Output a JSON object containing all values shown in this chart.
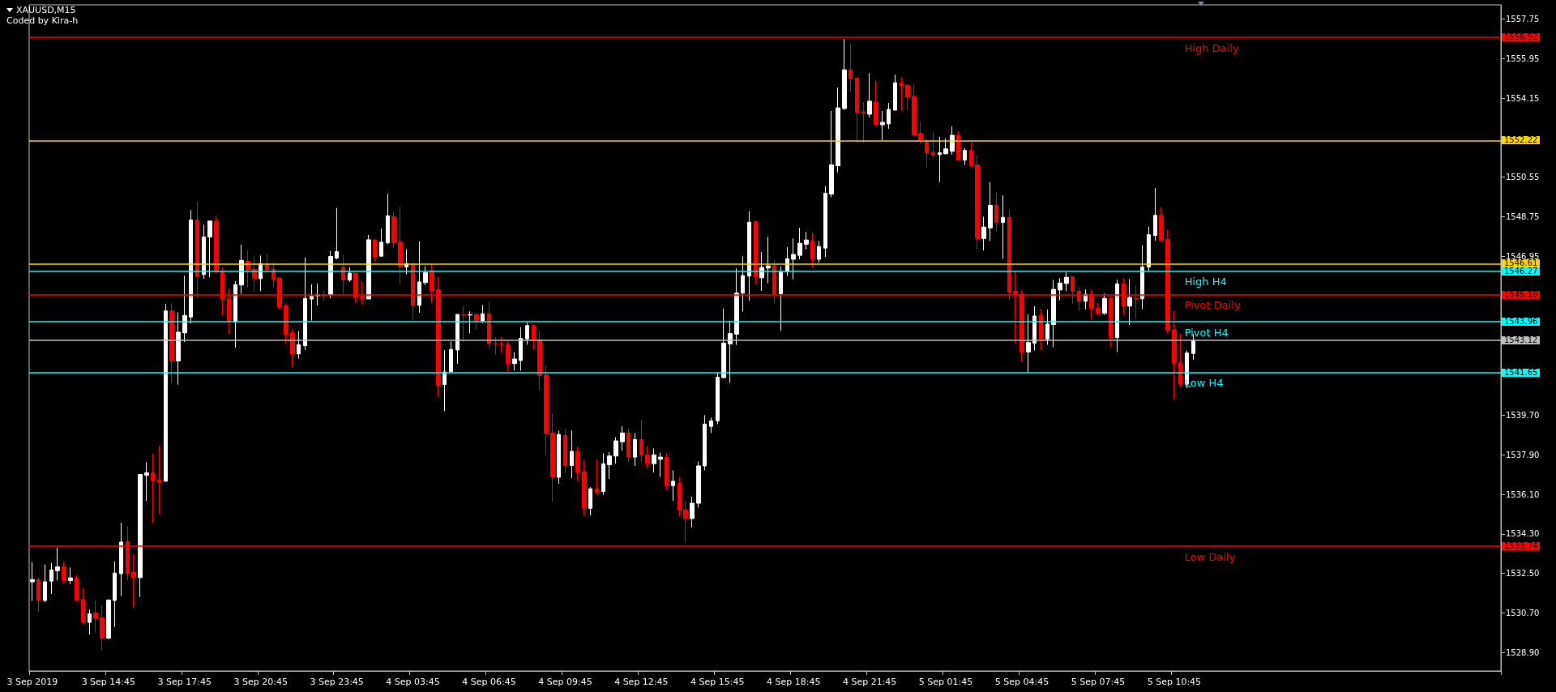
{
  "chart_data": {
    "type": "candlestick",
    "title": "XAUUSD,M15",
    "annotations": [
      "Coded by Kira-h",
      "1556.92",
      "1552.22",
      "1546.61",
      "1546.27",
      "1545.19",
      "1543.96",
      "1543.12",
      "1541.65",
      "1533.74"
    ],
    "categories": [
      "3 Sep 2019",
      null,
      null,
      null,
      null,
      null,
      null,
      null,
      null,
      null,
      null,
      null,
      "3 Sep 14:45",
      null,
      null,
      null,
      null,
      null,
      null,
      null,
      null,
      null,
      null,
      null,
      "3 Sep 17:45",
      null,
      null,
      null,
      null,
      null,
      null,
      null,
      null,
      null,
      null,
      null,
      "3 Sep 20:45",
      null,
      null,
      null,
      null,
      null,
      null,
      null,
      null,
      null,
      null,
      null,
      "3 Sep 23:45",
      null,
      null,
      null,
      null,
      null,
      null,
      null,
      null,
      null,
      null,
      null,
      "4 Sep 03:45",
      null,
      null,
      null,
      null,
      null,
      null,
      null,
      null,
      null,
      null,
      null,
      "4 Sep 06:45",
      null,
      null,
      null,
      null,
      null,
      null,
      null,
      null,
      null,
      null,
      null,
      "4 Sep 09:45",
      null,
      null,
      null,
      null,
      null,
      null,
      null,
      null,
      null,
      null,
      null,
      "4 Sep 12:45",
      null,
      null,
      null,
      null,
      null,
      null,
      null,
      null,
      null,
      null,
      null,
      "4 Sep 15:45",
      null,
      null,
      null,
      null,
      null,
      null,
      null,
      null,
      null,
      null,
      null,
      "4 Sep 18:45",
      null,
      null,
      null,
      null,
      null,
      null,
      null,
      null,
      null,
      null,
      null,
      "4 Sep 21:45",
      null,
      null,
      null,
      null,
      null,
      null,
      null,
      null,
      null,
      null,
      null,
      "5 Sep 01:45",
      null,
      null,
      null,
      null,
      null,
      null,
      null,
      null,
      null,
      null,
      null,
      "5 Sep 04:45",
      null,
      null,
      null,
      null,
      null,
      null,
      null,
      null,
      null,
      null,
      null,
      "5 Sep 07:45",
      null,
      null,
      null,
      null,
      null,
      null,
      null,
      null,
      null,
      null,
      null,
      "5 Sep 10:45",
      null,
      null,
      null,
      null,
      null,
      null,
      null,
      null,
      null,
      null,
      null,
      null,
      null,
      null,
      null,
      null,
      null,
      null,
      null,
      null,
      null,
      null,
      null,
      null,
      null,
      null,
      null,
      null,
      null,
      null,
      null,
      null,
      null,
      null,
      null,
      null,
      null,
      null,
      null,
      null,
      null,
      null,
      null,
      null,
      null,
      null,
      null,
      null,
      null,
      null,
      null
    ],
    "ohlc": [
      [
        1532.12,
        1533.01,
        1531.25,
        1532.22
      ],
      [
        1532.22,
        1532.31,
        1530.76,
        1531.27
      ],
      [
        1531.27,
        1532.91,
        1531.18,
        1532.12
      ],
      [
        1532.15,
        1532.98,
        1531.57,
        1532.66
      ],
      [
        1532.63,
        1533.67,
        1532.18,
        1532.8
      ],
      [
        1532.8,
        1533.05,
        1532.04,
        1532.18
      ],
      [
        1532.18,
        1532.77,
        1532.01,
        1532.3
      ],
      [
        1532.29,
        1532.42,
        1531.25,
        1531.29
      ],
      [
        1531.32,
        1531.83,
        1530.2,
        1530.27
      ],
      [
        1530.27,
        1530.86,
        1529.72,
        1530.66
      ],
      [
        1530.69,
        1531.27,
        1529.81,
        1530.45
      ],
      [
        1530.48,
        1531.04,
        1528.98,
        1529.55
      ],
      [
        1529.55,
        1531.29,
        1529.51,
        1531.29
      ],
      [
        1531.27,
        1533.05,
        1530.06,
        1532.52
      ],
      [
        1532.49,
        1534.81,
        1531.48,
        1533.93
      ],
      [
        1533.95,
        1534.65,
        1532.18,
        1532.49
      ],
      [
        1532.56,
        1533.37,
        1530.94,
        1532.31
      ],
      [
        1532.31,
        1537.01,
        1531.43,
        1537.01
      ],
      [
        1536.97,
        1537.56,
        1535.8,
        1537.08
      ],
      [
        1537.08,
        1537.95,
        1534.79,
        1536.73
      ],
      [
        1536.76,
        1538.32,
        1535.2,
        1536.66
      ],
      [
        1536.7,
        1544.78,
        1536.7,
        1544.46
      ],
      [
        1544.46,
        1544.81,
        1541.17,
        1542.18
      ],
      [
        1542.18,
        1544.39,
        1541.1,
        1543.49
      ],
      [
        1543.46,
        1546.06,
        1543.04,
        1544.25
      ],
      [
        1544.18,
        1549.05,
        1543.88,
        1548.6
      ],
      [
        1548.6,
        1549.43,
        1545.08,
        1546.03
      ],
      [
        1546.12,
        1548.39,
        1545.92,
        1547.83
      ],
      [
        1547.83,
        1548.55,
        1546.0,
        1548.55
      ],
      [
        1548.55,
        1548.78,
        1546.17,
        1546.24
      ],
      [
        1546.26,
        1546.44,
        1544.25,
        1544.99
      ],
      [
        1545.0,
        1545.48,
        1543.4,
        1543.97
      ],
      [
        1543.97,
        1545.82,
        1542.79,
        1545.66
      ],
      [
        1545.64,
        1547.48,
        1545.24,
        1546.76
      ],
      [
        1546.72,
        1547.23,
        1545.54,
        1546.33
      ],
      [
        1546.36,
        1546.94,
        1545.32,
        1545.93
      ],
      [
        1545.93,
        1546.98,
        1545.36,
        1546.61
      ],
      [
        1546.57,
        1547.05,
        1546.23,
        1546.33
      ],
      [
        1546.36,
        1546.65,
        1545.54,
        1545.89
      ],
      [
        1545.96,
        1545.99,
        1544.55,
        1544.63
      ],
      [
        1544.7,
        1544.8,
        1542.97,
        1543.37
      ],
      [
        1543.46,
        1543.64,
        1541.88,
        1542.5
      ],
      [
        1542.5,
        1543.54,
        1542.28,
        1542.92
      ],
      [
        1542.88,
        1546.9,
        1542.68,
        1545.02
      ],
      [
        1545.0,
        1545.67,
        1544.02,
        1545.12
      ],
      [
        1545.15,
        1545.71,
        1544.71,
        1545.19
      ],
      [
        1545.19,
        1545.38,
        1544.91,
        1545.15
      ],
      [
        1545.19,
        1547.19,
        1545.03,
        1546.94
      ],
      [
        1546.87,
        1549.15,
        1546.81,
        1547.16
      ],
      [
        1546.45,
        1547.01,
        1545.19,
        1545.87
      ],
      [
        1545.87,
        1546.45,
        1545.79,
        1546.18
      ],
      [
        1546.18,
        1546.18,
        1544.82,
        1545.07
      ],
      [
        1545.11,
        1545.82,
        1544.78,
        1545.03
      ],
      [
        1545.0,
        1547.92,
        1545.0,
        1547.7
      ],
      [
        1547.7,
        1547.7,
        1546.7,
        1546.92
      ],
      [
        1546.95,
        1548.21,
        1546.95,
        1547.59
      ],
      [
        1547.56,
        1549.8,
        1547.5,
        1548.79
      ],
      [
        1548.75,
        1548.97,
        1547.35,
        1547.56
      ],
      [
        1547.59,
        1549.19,
        1545.67,
        1546.47
      ],
      [
        1546.47,
        1547.27,
        1546.12,
        1546.61
      ],
      [
        1546.61,
        1546.61,
        1544.02,
        1544.71
      ],
      [
        1544.71,
        1547.63,
        1544.38,
        1545.78
      ],
      [
        1545.75,
        1546.5,
        1545.63,
        1546.2
      ],
      [
        1546.3,
        1546.6,
        1544.82,
        1545.36
      ],
      [
        1545.42,
        1546.0,
        1540.56,
        1541.07
      ],
      [
        1541.11,
        1542.67,
        1539.89,
        1541.68
      ],
      [
        1541.69,
        1543.06,
        1541.65,
        1542.7
      ],
      [
        1542.68,
        1544.3,
        1542.06,
        1544.3
      ],
      [
        1544.29,
        1544.69,
        1543.06,
        1544.27
      ],
      [
        1544.27,
        1544.44,
        1543.43,
        1544.29
      ],
      [
        1544.3,
        1544.33,
        1543.61,
        1544.01
      ],
      [
        1544.01,
        1544.73,
        1543.91,
        1544.33
      ],
      [
        1544.33,
        1544.88,
        1542.74,
        1542.97
      ],
      [
        1542.98,
        1543.28,
        1542.46,
        1542.96
      ],
      [
        1542.96,
        1543.28,
        1542.56,
        1542.94
      ],
      [
        1542.92,
        1543.1,
        1541.7,
        1542.06
      ],
      [
        1542.06,
        1542.59,
        1541.74,
        1542.27
      ],
      [
        1542.2,
        1543.72,
        1541.74,
        1543.21
      ],
      [
        1543.19,
        1543.93,
        1542.92,
        1543.79
      ],
      [
        1543.79,
        1543.86,
        1542.7,
        1543.1
      ],
      [
        1543.14,
        1543.57,
        1540.85,
        1541.52
      ],
      [
        1541.54,
        1541.98,
        1537.9,
        1538.87
      ],
      [
        1538.9,
        1539.77,
        1535.76,
        1536.9
      ],
      [
        1536.88,
        1539.01,
        1536.59,
        1538.83
      ],
      [
        1538.79,
        1539.08,
        1537.09,
        1537.42
      ],
      [
        1537.42,
        1539.01,
        1536.84,
        1538.06
      ],
      [
        1538.06,
        1538.28,
        1536.72,
        1537.1
      ],
      [
        1537.12,
        1537.67,
        1535.14,
        1535.47
      ],
      [
        1535.47,
        1536.43,
        1535.14,
        1536.36
      ],
      [
        1536.36,
        1537.7,
        1536.08,
        1536.19
      ],
      [
        1536.23,
        1537.97,
        1536.08,
        1537.49
      ],
      [
        1537.45,
        1538.03,
        1536.81,
        1537.85
      ],
      [
        1537.85,
        1538.7,
        1537.5,
        1538.54
      ],
      [
        1538.5,
        1539.2,
        1538.1,
        1538.9
      ],
      [
        1538.9,
        1539.1,
        1537.6,
        1537.8
      ],
      [
        1537.8,
        1538.9,
        1537.4,
        1538.6
      ],
      [
        1538.6,
        1539.5,
        1537.6,
        1537.9
      ],
      [
        1537.9,
        1538.3,
        1537.3,
        1537.5
      ],
      [
        1537.5,
        1538.2,
        1537.1,
        1537.9
      ],
      [
        1537.7,
        1538.0,
        1536.9,
        1537.8
      ],
      [
        1537.8,
        1538.0,
        1536.3,
        1536.5
      ],
      [
        1536.5,
        1537.2,
        1535.8,
        1536.7
      ],
      [
        1536.6,
        1536.9,
        1535.1,
        1535.4
      ],
      [
        1535.4,
        1535.8,
        1533.9,
        1535.0
      ],
      [
        1535.0,
        1536.0,
        1534.6,
        1535.7
      ],
      [
        1535.7,
        1537.6,
        1535.5,
        1537.4
      ],
      [
        1537.4,
        1539.71,
        1537.2,
        1539.3
      ],
      [
        1539.2,
        1539.6,
        1538.9,
        1539.45
      ],
      [
        1539.45,
        1541.64,
        1539.3,
        1541.44
      ],
      [
        1541.42,
        1544.57,
        1541.4,
        1542.99
      ],
      [
        1542.96,
        1544.01,
        1541.18,
        1543.43
      ],
      [
        1543.4,
        1546.4,
        1542.91,
        1545.27
      ],
      [
        1545.27,
        1546.95,
        1544.43,
        1546.07
      ],
      [
        1546.05,
        1549.01,
        1544.91,
        1548.5
      ],
      [
        1548.53,
        1548.57,
        1545.68,
        1546.01
      ],
      [
        1545.97,
        1547.14,
        1545.37,
        1546.44
      ],
      [
        1546.41,
        1547.83,
        1545.72,
        1546.51
      ],
      [
        1546.51,
        1546.77,
        1544.8,
        1545.24
      ],
      [
        1545.24,
        1546.48,
        1543.55,
        1546.23
      ],
      [
        1546.26,
        1547.36,
        1546.05,
        1546.84
      ],
      [
        1546.81,
        1547.76,
        1545.9,
        1547.03
      ],
      [
        1546.99,
        1548.24,
        1546.81,
        1547.54
      ],
      [
        1547.5,
        1548.06,
        1547.26,
        1547.69
      ],
      [
        1547.65,
        1548.02,
        1546.44,
        1546.81
      ],
      [
        1546.81,
        1547.65,
        1546.66,
        1547.39
      ],
      [
        1547.32,
        1550.15,
        1546.92,
        1549.82
      ],
      [
        1549.78,
        1553.57,
        1549.63,
        1551.11
      ],
      [
        1551.07,
        1554.63,
        1550.77,
        1553.71
      ],
      [
        1553.68,
        1556.84,
        1553.6,
        1555.44
      ],
      [
        1555.44,
        1556.62,
        1554.45,
        1555.04
      ],
      [
        1555.07,
        1555.07,
        1552.13,
        1553.49
      ],
      [
        1553.53,
        1553.97,
        1552.13,
        1553.46
      ],
      [
        1553.42,
        1555.29,
        1553.27,
        1554.01
      ],
      [
        1553.97,
        1554.93,
        1552.87,
        1552.94
      ],
      [
        1552.94,
        1553.57,
        1552.24,
        1553.05
      ],
      [
        1552.98,
        1553.93,
        1552.76,
        1553.64
      ],
      [
        1553.6,
        1555.22,
        1553.6,
        1554.85
      ],
      [
        1554.85,
        1555.11,
        1553.57,
        1554.71
      ],
      [
        1554.74,
        1554.78,
        1553.6,
        1554.19
      ],
      [
        1554.23,
        1554.78,
        1552.43,
        1552.46
      ],
      [
        1552.54,
        1553.09,
        1552.06,
        1552.24
      ],
      [
        1552.13,
        1552.32,
        1550.99,
        1551.66
      ],
      [
        1551.69,
        1552.61,
        1551.4,
        1551.55
      ],
      [
        1551.58,
        1552.39,
        1550.33,
        1551.66
      ],
      [
        1551.62,
        1552.32,
        1551.58,
        1551.84
      ],
      [
        1551.73,
        1552.87,
        1551.58,
        1552.46
      ],
      [
        1552.46,
        1552.65,
        1551.33,
        1551.33
      ],
      [
        1551.33,
        1551.88,
        1551.11,
        1551.77
      ],
      [
        1551.77,
        1552.13,
        1551.03,
        1551.07
      ],
      [
        1551.11,
        1551.55,
        1547.25,
        1547.76
      ],
      [
        1547.76,
        1548.75,
        1547.21,
        1548.28
      ],
      [
        1548.24,
        1550.33,
        1547.65,
        1549.27
      ],
      [
        1549.27,
        1549.86,
        1548.09,
        1548.5
      ],
      [
        1548.49,
        1549.72,
        1546.83,
        1548.72
      ],
      [
        1548.72,
        1549.07,
        1544.94,
        1545.31
      ],
      [
        1545.35,
        1546.32,
        1542.96,
        1545.24
      ],
      [
        1545.22,
        1545.4,
        1542.15,
        1542.59
      ],
      [
        1542.59,
        1544.3,
        1541.66,
        1543.02
      ],
      [
        1542.99,
        1544.67,
        1542.66,
        1544.23
      ],
      [
        1544.26,
        1544.56,
        1542.66,
        1543.18
      ],
      [
        1543.18,
        1544.52,
        1542.92,
        1543.86
      ],
      [
        1543.84,
        1545.88,
        1542.81,
        1545.44
      ],
      [
        1545.41,
        1545.95,
        1544.94,
        1545.73
      ],
      [
        1545.71,
        1546.21,
        1545.36,
        1545.99
      ],
      [
        1546.02,
        1546.02,
        1544.79,
        1545.36
      ],
      [
        1545.36,
        1545.55,
        1544.46,
        1544.9
      ],
      [
        1544.9,
        1545.44,
        1544.53,
        1545.22
      ],
      [
        1545.22,
        1545.44,
        1544.06,
        1544.57
      ],
      [
        1544.59,
        1544.85,
        1544.28,
        1544.35
      ],
      [
        1544.35,
        1545.25,
        1544.28,
        1545.03
      ],
      [
        1545.03,
        1545.14,
        1542.81,
        1543.25
      ],
      [
        1543.25,
        1545.88,
        1542.59,
        1545.69
      ],
      [
        1545.69,
        1545.95,
        1544.28,
        1544.68
      ],
      [
        1544.68,
        1545.91,
        1543.8,
        1545.07
      ],
      [
        1545.04,
        1545.62,
        1544.09,
        1545.02
      ],
      [
        1545.01,
        1547.45,
        1544.53,
        1546.46
      ],
      [
        1546.46,
        1548.3,
        1546.28,
        1547.93
      ],
      [
        1547.9,
        1550.06,
        1547.65,
        1548.81
      ],
      [
        1548.81,
        1549.18,
        1547.61,
        1547.69
      ],
      [
        1547.71,
        1548.15,
        1543.43,
        1543.58
      ],
      [
        1543.6,
        1544.45,
        1540.43,
        1542.08
      ],
      [
        1542.1,
        1543.42,
        1540.98,
        1541.12
      ],
      [
        1541.12,
        1542.65,
        1540.94,
        1542.54
      ],
      [
        1542.52,
        1543.42,
        1542.23,
        1543.12
      ],
      null,
      null,
      null,
      null,
      null,
      null,
      null,
      null,
      null,
      null,
      null,
      null,
      null,
      null,
      null,
      null,
      null,
      null,
      null,
      null,
      null,
      null,
      null,
      null,
      null,
      null,
      null,
      null,
      null,
      null,
      null,
      null,
      null,
      null,
      null,
      null,
      null,
      null,
      null,
      null,
      null,
      null,
      null,
      null,
      null,
      null,
      null,
      null
    ],
    "ylim": [
      1528.06,
      1558.4
    ],
    "yticks": [
      {
        "value": 1528.9,
        "label": "1528.90"
      },
      {
        "value": 1530.7,
        "label": "1530.70"
      },
      {
        "value": 1532.5,
        "label": "1532.50"
      },
      {
        "value": 1534.3,
        "label": "1534.30"
      },
      {
        "value": 1536.1,
        "label": "1536.10"
      },
      {
        "value": 1537.9,
        "label": "1537.90"
      },
      {
        "value": 1539.7,
        "label": "1539.70"
      },
      {
        "value": 1546.95,
        "label": "1546.95"
      },
      {
        "value": 1548.75,
        "label": "1548.75"
      },
      {
        "value": 1550.55,
        "label": "1550.55"
      },
      {
        "value": 1554.15,
        "label": "1554.15"
      },
      {
        "value": 1555.95,
        "label": "1555.95"
      },
      {
        "value": 1557.75,
        "label": "1557.75"
      }
    ],
    "ref_lines": [
      {
        "axis": "y",
        "value": 1556.92,
        "label": "High Daily",
        "color": "#ff0000"
      },
      {
        "axis": "y",
        "value": 1552.22,
        "color": "#ffd700"
      },
      {
        "axis": "y",
        "value": 1546.61,
        "color": "#ffd700"
      },
      {
        "axis": "y",
        "value": 1546.27,
        "label": "High H4",
        "color": "#00ffff"
      },
      {
        "axis": "y",
        "value": 1545.19,
        "label": "Pivot Daily",
        "color": "#ff0000"
      },
      {
        "axis": "y",
        "value": 1543.96,
        "label": "Pivot H4",
        "color": "#00ffff"
      },
      {
        "axis": "y",
        "value": 1543.12,
        "color": "#c0c0c0"
      },
      {
        "axis": "y",
        "value": 1541.65,
        "label": "Low H4",
        "color": "#00ffff"
      },
      {
        "axis": "y",
        "value": 1533.74,
        "label": "Low Daily",
        "color": "#ff0000"
      }
    ]
  }
}
